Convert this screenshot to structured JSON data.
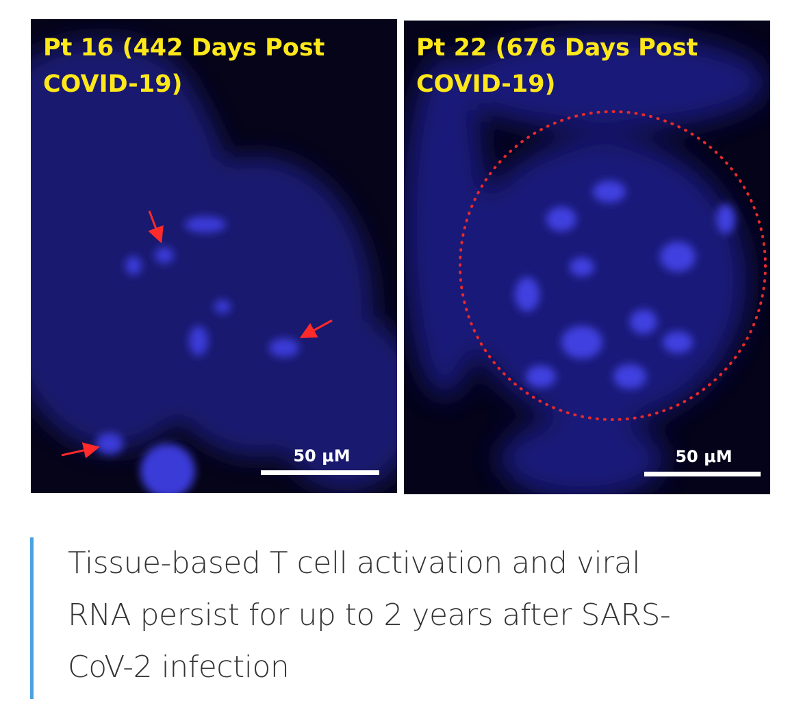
{
  "figure": {
    "panels": [
      {
        "title_lines": [
          "Pt 16 (442 Days Post",
          "COVID-19)"
        ],
        "scale_bar": "50 μM"
      },
      {
        "title_lines": [
          "Pt 22 (676 Days Post",
          "COVID-19)"
        ],
        "scale_bar": "50 μM"
      }
    ]
  },
  "caption": {
    "lines": [
      "Tissue-based T cell activation and viral",
      "RNA persist for up to 2 years after SARS-",
      "CoV-2 infection"
    ]
  }
}
